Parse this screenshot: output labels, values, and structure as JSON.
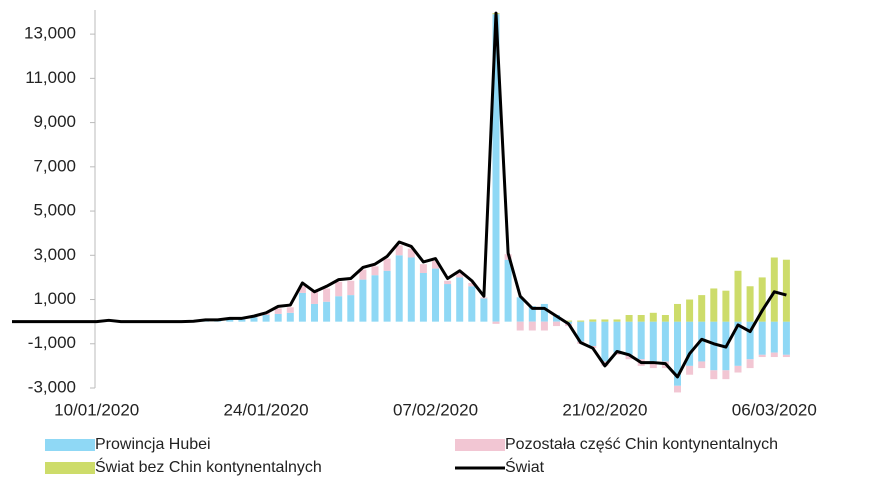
{
  "chart_data": {
    "type": "bar",
    "categories": [
      null,
      null,
      null,
      null,
      null,
      null,
      null,
      "10/01/2020",
      null,
      null,
      null,
      null,
      null,
      null,
      null,
      null,
      null,
      null,
      null,
      null,
      null,
      "24/01/2020",
      null,
      null,
      null,
      null,
      null,
      null,
      null,
      null,
      null,
      null,
      null,
      null,
      null,
      "07/02/2020",
      null,
      null,
      null,
      null,
      null,
      null,
      null,
      null,
      null,
      null,
      null,
      null,
      null,
      "21/02/2020",
      null,
      null,
      null,
      null,
      null,
      null,
      null,
      null,
      null,
      null,
      null,
      null,
      null,
      "06/03/2020",
      null
    ],
    "series": [
      {
        "name": "Prowincja Hubei",
        "color": "#8fd8f5",
        "values": [
          0,
          0,
          0,
          0,
          0,
          0,
          0,
          0,
          0,
          0,
          0,
          0,
          0,
          0,
          0,
          20,
          60,
          70,
          120,
          100,
          200,
          300,
          350,
          400,
          1300,
          800,
          900,
          1150,
          1200,
          1900,
          2100,
          2300,
          3000,
          2900,
          2200,
          2400,
          1700,
          2000,
          1600,
          1050,
          13900,
          2800,
          1100,
          700,
          800,
          300,
          -100,
          -900,
          -1100,
          -1800,
          -1400,
          -1500,
          -1700,
          -1800,
          -1800,
          -2900,
          -2000,
          -1800,
          -2200,
          -2200,
          -2000,
          -1700,
          -1500,
          -1400,
          -1500
        ]
      },
      {
        "name": "Pozostała część Chin kontynentalnych",
        "color": "#f2c6d3",
        "values": [
          0,
          0,
          0,
          0,
          0,
          0,
          0,
          0,
          0,
          0,
          0,
          0,
          0,
          0,
          0,
          0,
          20,
          10,
          30,
          50,
          50,
          100,
          250,
          250,
          300,
          550,
          600,
          650,
          650,
          450,
          400,
          550,
          450,
          400,
          400,
          350,
          150,
          200,
          150,
          50,
          -100,
          250,
          -400,
          -400,
          -400,
          -200,
          -100,
          -100,
          -100,
          -200,
          -100,
          -200,
          -300,
          -300,
          -300,
          -300,
          -400,
          -300,
          -400,
          -400,
          -300,
          -400,
          -100,
          -200,
          -100
        ]
      },
      {
        "name": "Świat bez Chin kontynentalnych",
        "color": "#cddc6a",
        "values": [
          0,
          0,
          0,
          0,
          0,
          0,
          0,
          0,
          0,
          0,
          0,
          0,
          0,
          0,
          0,
          0,
          0,
          0,
          0,
          0,
          0,
          0,
          0,
          0,
          0,
          0,
          0,
          0,
          0,
          0,
          0,
          0,
          0,
          0,
          0,
          0,
          0,
          0,
          0,
          0,
          50,
          0,
          0,
          0,
          0,
          0,
          50,
          50,
          100,
          100,
          100,
          300,
          300,
          400,
          300,
          800,
          1000,
          1200,
          1500,
          1400,
          2300,
          1600,
          2000,
          2900,
          2800
        ]
      },
      {
        "name": "Świat",
        "color": "#000000",
        "type": "line",
        "values": [
          0,
          0,
          0,
          0,
          0,
          0,
          0,
          0,
          60,
          0,
          0,
          0,
          0,
          0,
          0,
          20,
          80,
          80,
          150,
          150,
          250,
          400,
          690,
          750,
          1750,
          1350,
          1600,
          1900,
          1950,
          2450,
          2600,
          2950,
          3600,
          3400,
          2700,
          2850,
          1950,
          2300,
          1850,
          1150,
          13950,
          3100,
          1150,
          600,
          600,
          250,
          -100,
          -950,
          -1200,
          -2000,
          -1350,
          -1500,
          -1850,
          -1850,
          -1900,
          -2500,
          -1450,
          -800,
          -1000,
          -1150,
          -150,
          -450,
          500,
          1350,
          1200
        ]
      }
    ],
    "ylim": [
      -3000,
      14000
    ],
    "yticks": [
      {
        "value": -3000,
        "label": "-3,000"
      },
      {
        "value": -1000,
        "label": "-1,000"
      },
      {
        "value": 1000,
        "label": "1,000"
      },
      {
        "value": 3000,
        "label": "3,000"
      },
      {
        "value": 5000,
        "label": "5,000"
      },
      {
        "value": 7000,
        "label": "7,000"
      },
      {
        "value": 9000,
        "label": "9,000"
      },
      {
        "value": 11000,
        "label": "11,000"
      },
      {
        "value": 13000,
        "label": "13,000"
      }
    ],
    "grid": false
  }
}
